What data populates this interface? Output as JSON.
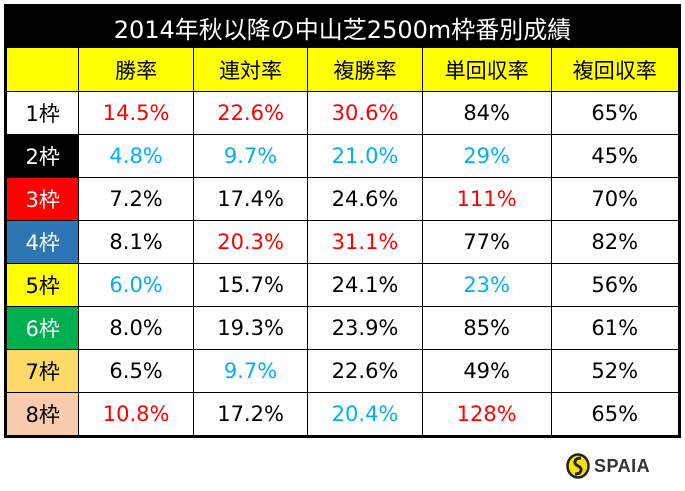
{
  "title": "2014年秋以降の中山芝2500m枠番別成績",
  "chart_data": {
    "type": "table",
    "title": "2014年秋以降の中山芝2500m枠番別成績",
    "columns": [
      "",
      "勝率",
      "連対率",
      "複勝率",
      "単回収率",
      "複回収率"
    ],
    "rows": [
      {
        "label": "1枠",
        "label_bg": "#ffffff",
        "label_color": "#000000",
        "values": [
          "14.5%",
          "22.6%",
          "30.6%",
          "84%",
          "65%"
        ],
        "colors": [
          "red",
          "red",
          "red",
          "black",
          "black"
        ]
      },
      {
        "label": "2枠",
        "label_bg": "#000000",
        "label_color": "#ffffff",
        "values": [
          "4.8%",
          "9.7%",
          "21.0%",
          "29%",
          "45%"
        ],
        "colors": [
          "blue",
          "blue",
          "blue",
          "blue",
          "black"
        ]
      },
      {
        "label": "3枠",
        "label_bg": "#ff0000",
        "label_color": "#ffffff",
        "values": [
          "7.2%",
          "17.4%",
          "24.6%",
          "111%",
          "70%"
        ],
        "colors": [
          "black",
          "black",
          "black",
          "red",
          "black"
        ]
      },
      {
        "label": "4枠",
        "label_bg": "#2e75b6",
        "label_color": "#ffffff",
        "values": [
          "8.1%",
          "20.3%",
          "31.1%",
          "77%",
          "82%"
        ],
        "colors": [
          "black",
          "red",
          "red",
          "black",
          "black"
        ]
      },
      {
        "label": "5枠",
        "label_bg": "#ffff00",
        "label_color": "#000000",
        "values": [
          "6.0%",
          "15.7%",
          "24.1%",
          "23%",
          "56%"
        ],
        "colors": [
          "blue",
          "black",
          "black",
          "blue",
          "black"
        ]
      },
      {
        "label": "6枠",
        "label_bg": "#00b050",
        "label_color": "#ffffff",
        "values": [
          "8.0%",
          "19.3%",
          "23.9%",
          "85%",
          "61%"
        ],
        "colors": [
          "black",
          "black",
          "black",
          "black",
          "black"
        ]
      },
      {
        "label": "7枠",
        "label_bg": "#ffd966",
        "label_color": "#000000",
        "values": [
          "6.5%",
          "9.7%",
          "22.6%",
          "49%",
          "52%"
        ],
        "colors": [
          "black",
          "blue",
          "black",
          "black",
          "black"
        ]
      },
      {
        "label": "8枠",
        "label_bg": "#f8cbad",
        "label_color": "#000000",
        "values": [
          "10.8%",
          "17.2%",
          "20.4%",
          "128%",
          "65%"
        ],
        "colors": [
          "red",
          "black",
          "blue",
          "red",
          "black"
        ]
      }
    ]
  },
  "palette": {
    "red": "#ff0000",
    "blue": "#00b0f0",
    "black": "#000000",
    "header_bg": "#ffff00",
    "title_bg": "#000000"
  },
  "logo": {
    "text": "SPAIA",
    "icon": "spaia-logo-icon"
  }
}
